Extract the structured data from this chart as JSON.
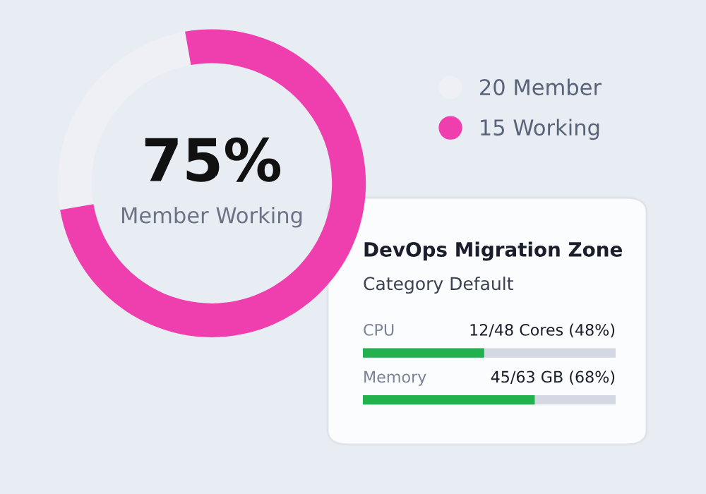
{
  "chart_data": [
    {
      "type": "donut",
      "title": "75%",
      "subtitle": "Member Working",
      "categories": [
        "20 Member",
        "15 Working"
      ],
      "values": [
        25,
        75
      ],
      "colors": [
        "#eef0f5",
        "#ef3fae"
      ],
      "legend": "right"
    },
    {
      "type": "bar",
      "orientation": "horizontal",
      "title": "DevOps Migration Zone",
      "subtitle": "Category Default",
      "categories": [
        "CPU",
        "Memory"
      ],
      "values": [
        48,
        68
      ],
      "value_labels": [
        "12/48 Cores (48%)",
        "45/63 GB (68%)"
      ],
      "color": "#22b14c",
      "xlim": [
        0,
        100
      ]
    }
  ]
}
